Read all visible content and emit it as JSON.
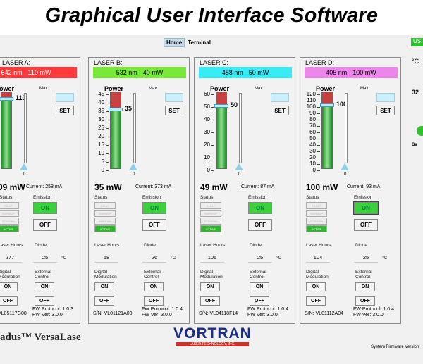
{
  "heading": "Graphical User Interface Software",
  "tabs": [
    {
      "label": "Home",
      "active": true
    },
    {
      "label": "Terminal",
      "active": false
    }
  ],
  "usb_indicator": "US",
  "power_label": "Power",
  "max_label": "Max",
  "set_label": "SET",
  "zero_label": "0",
  "status_label": "Status",
  "emission_label": "Emission",
  "on_label": "ON",
  "off_label": "OFF",
  "laser_hours_label": "Laser Hours",
  "diode_label": "Diode",
  "deg_unit": "°C",
  "digital_mod_label_1": "Digital",
  "digital_mod_label_2": "Modulation",
  "external_ctrl_label_1": "External",
  "external_ctrl_label_2": "Control",
  "status_states": [
    "FAULT",
    "WARMUP",
    "STANDBY",
    "ACTIVE"
  ],
  "panels": [
    {
      "title": "LASER A:",
      "wavelength": "642 nm",
      "power_set": "110 mW",
      "bar_color": "#ff3a3a",
      "bar_text_color": "#ffffff",
      "ticks": [
        "",
        "",
        "",
        "",
        "",
        "",
        "",
        "",
        "",
        ""
      ],
      "gauge_value_label": "110",
      "gauge_fraction": 0.92,
      "output_power": "09 mW",
      "current": "Current: 258 mA",
      "laser_hours": "277",
      "diode_temp": "25",
      "serial": "VL05117G00",
      "fw_protocol": "FW Protocol: 1.0.3",
      "fw_ver": "FW Ver: 3.0.0",
      "emission_selected": false
    },
    {
      "title": "LASER B:",
      "wavelength": "532 nm",
      "power_set": "40 mW",
      "bar_color": "#78e83a",
      "bar_text_color": "#000000",
      "ticks": [
        "45",
        "40",
        "35",
        "30",
        "25",
        "20",
        "15",
        "10",
        "5",
        "0"
      ],
      "gauge_value_label": "35",
      "gauge_fraction": 0.78,
      "output_power": "35 mW",
      "current": "Current: 373 mA",
      "laser_hours": "58",
      "diode_temp": "26",
      "serial": "S/N: VL01121A00",
      "fw_protocol": "FW Protocol: 1.0.4",
      "fw_ver": "FW Ver: 3.0.0",
      "emission_selected": false
    },
    {
      "title": "LASER C:",
      "wavelength": "488 nm",
      "power_set": "50 mW",
      "bar_color": "#38ecf5",
      "bar_text_color": "#000000",
      "ticks": [
        "60",
        "50",
        "40",
        "30",
        "20",
        "10",
        "0"
      ],
      "gauge_value_label": "50",
      "gauge_fraction": 0.82,
      "output_power": "49 mW",
      "current": "Current: 87 mA",
      "laser_hours": "105",
      "diode_temp": "25",
      "serial": "S/N: VL04118F14",
      "fw_protocol": "FW Protocol: 1.0.4",
      "fw_ver": "FW Ver: 3.0.0",
      "emission_selected": false
    },
    {
      "title": "LASER D:",
      "wavelength": "405 nm",
      "power_set": "100 mW",
      "bar_color": "#ec86ea",
      "bar_text_color": "#000000",
      "ticks": [
        "120",
        "110",
        "100",
        "90",
        "80",
        "70",
        "60",
        "50",
        "40",
        "30",
        "20",
        "10",
        "0"
      ],
      "gauge_value_label": "100",
      "gauge_fraction": 0.83,
      "output_power": "100 mW",
      "current": "Current: 93 mA",
      "laser_hours": "104",
      "diode_temp": "25",
      "serial": "S/N: VL01112A04",
      "fw_protocol": "FW Protocol: 1.0.4",
      "fw_ver": "FW Ver: 3.0.0",
      "emission_selected": true
    }
  ],
  "right_temp_unit": "°C",
  "right_value": "32",
  "right_label": "Ba",
  "brand_name": "adus™ VersaLase",
  "logo_main": "VORTRAN",
  "logo_sub": "LASER TECHNOLOGY, INC.",
  "system_fw": "System Firmware Version"
}
